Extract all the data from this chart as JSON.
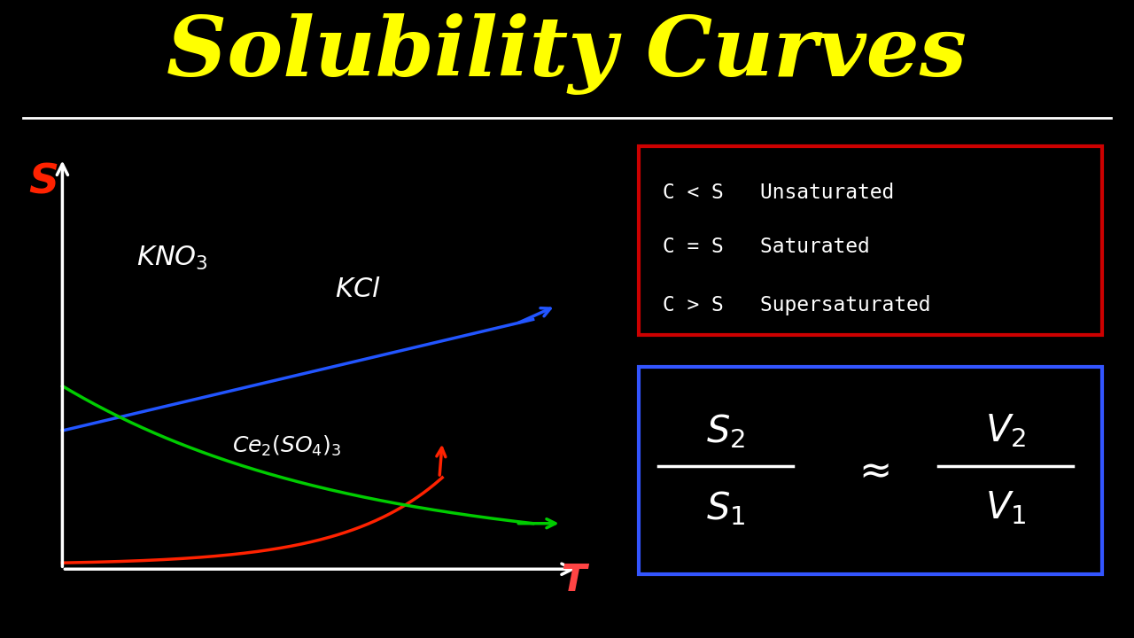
{
  "title": "Solubility Curves",
  "title_color": "#FFFF00",
  "title_fontsize": 68,
  "background_color": "#000000",
  "separator_line_color": "#FFFFFF",
  "s_label_color": "#FF2200",
  "t_label_color": "#FF4444",
  "axis_color": "#FFFFFF",
  "kno3_color": "#FF2200",
  "kcl_color": "#2255FF",
  "ce2so4_color": "#00CC00",
  "info_box_color": "#CC0000",
  "formula_box_color": "#3355FF",
  "info_lines": [
    "C < S   Unsaturated",
    "C = S   Saturated",
    "C > S   Supersaturated"
  ],
  "info_text_color": "#FFFFFF"
}
